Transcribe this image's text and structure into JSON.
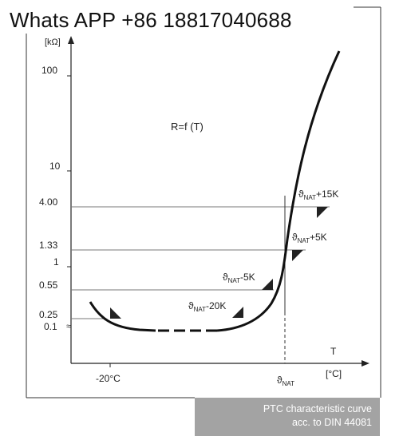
{
  "watermark": "Whats APP +86 18817040688",
  "caption": {
    "line1": "PTC characteristic curve",
    "line2": "acc. to DIN 44081"
  },
  "chart_data": {
    "type": "line",
    "title": "",
    "curve_label": "R=f (T)",
    "ylabel": "[kΩ]",
    "xlabel": "T",
    "xunit": "[°C]",
    "y_scale": "log",
    "grid": false,
    "y_ticks": [
      "100",
      "10",
      "4.00",
      "1.33",
      "1",
      "0.55",
      "0.25",
      "0.1"
    ],
    "x_ticks": [
      "-20°C",
      "ϑNAT"
    ],
    "reference_lines": [
      {
        "y": "4.00",
        "label": "ϑNAT+15K"
      },
      {
        "y": "1.33",
        "label": "ϑNAT+5K"
      },
      {
        "y": "0.55",
        "label": "ϑNAT-5K"
      },
      {
        "y": "0.25",
        "label": ""
      }
    ],
    "annotations": [
      "ϑNAT-20K"
    ],
    "series": [
      {
        "points": [
          {
            "x": "-20°C",
            "y": 0.25
          },
          {
            "x": "ϑNAT-20K",
            "y": 0.11
          },
          {
            "x": "ϑNAT-5K",
            "y": 0.55
          },
          {
            "x": "ϑNAT",
            "y": 1.0
          },
          {
            "x": "ϑNAT+5K",
            "y": 1.33
          },
          {
            "x": "ϑNAT+15K",
            "y": 4.0
          }
        ]
      }
    ]
  }
}
